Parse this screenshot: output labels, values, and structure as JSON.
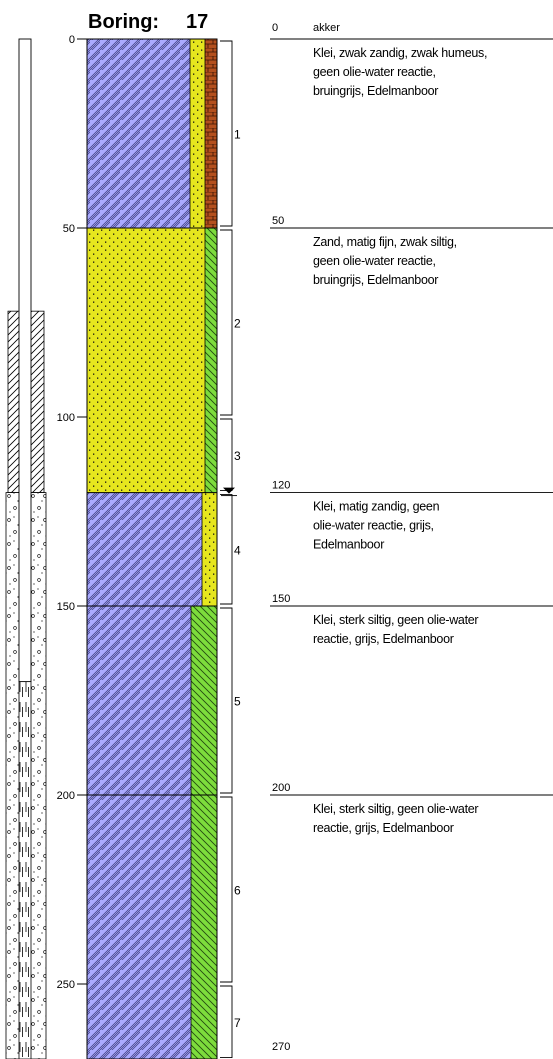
{
  "title": {
    "label": "Boring:",
    "number": "17"
  },
  "scale": {
    "max_depth": 270,
    "ticks": [
      "0",
      "50",
      "100",
      "150",
      "200",
      "250"
    ]
  },
  "colors": {
    "klei": "#aaaaff",
    "zand": "#e6e61e",
    "silt": "#7ddc3c",
    "humus": "#b4501e",
    "line": "#000000"
  },
  "layers": [
    {
      "top": 0,
      "bottom": 50,
      "main": "klei",
      "side": "zand",
      "extra": "humus",
      "depth_label": "0",
      "top_note": "akker",
      "description": [
        "Klei, zwak zandig, zwak humeus,",
        "geen olie-water reactie,",
        "bruingrijs, Edelmanboor"
      ]
    },
    {
      "top": 50,
      "bottom": 120,
      "main": "zand",
      "side": "silt",
      "extra": null,
      "depth_label": "50",
      "top_note": "",
      "description": [
        "Zand, matig fijn, zwak siltig,",
        "geen olie-water reactie,",
        "bruingrijs, Edelmanboor"
      ]
    },
    {
      "top": 120,
      "bottom": 150,
      "main": "klei",
      "side": "zand",
      "extra": null,
      "depth_label": "120",
      "top_note": "",
      "description": [
        "Klei, matig zandig, geen",
        "olie-water reactie, grijs,",
        "Edelmanboor"
      ]
    },
    {
      "top": 150,
      "bottom": 200,
      "main": "klei",
      "side": "silt",
      "extra": null,
      "depth_label": "150",
      "top_note": "",
      "description": [
        "Klei, sterk siltig, geen olie-water",
        "reactie, grijs, Edelmanboor"
      ]
    },
    {
      "top": 200,
      "bottom": 270,
      "main": "klei",
      "side": "silt",
      "extra": null,
      "depth_label": "200",
      "top_note": "",
      "description": [
        "Klei, sterk siltig, geen olie-water",
        "reactie, grijs, Edelmanboor"
      ]
    }
  ],
  "bottom_label": "270",
  "samples": [
    {
      "label": "1",
      "top": 0,
      "bottom": 50
    },
    {
      "label": "2",
      "top": 50,
      "bottom": 100
    },
    {
      "label": "3",
      "top": 100,
      "bottom": 120
    },
    {
      "label": "4",
      "top": 120,
      "bottom": 150
    },
    {
      "label": "5",
      "top": 150,
      "bottom": 200
    },
    {
      "label": "6",
      "top": 200,
      "bottom": 250
    },
    {
      "label": "7",
      "top": 250,
      "bottom": 270
    }
  ],
  "groundwater_level": 120,
  "casing": {
    "inner_pipe_bottom": 170,
    "hatched_top": 72,
    "hatched_bottom": 120,
    "gravel_top": 120,
    "gravel_bottom": 270
  }
}
